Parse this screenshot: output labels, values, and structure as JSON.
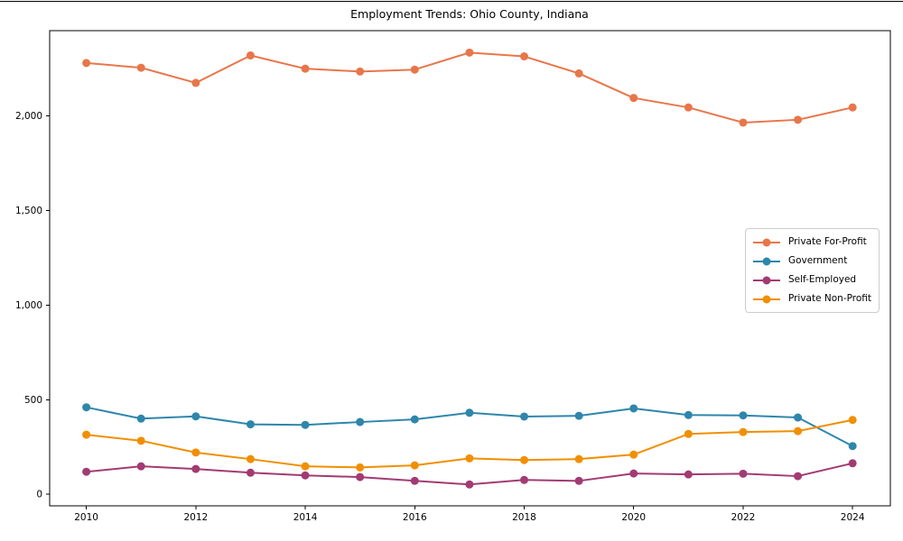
{
  "figure": {
    "background_color": "#ffffff",
    "frame_color": "#000000",
    "top_edge_line": true
  },
  "chart_data": {
    "type": "line",
    "title": "Employment Trends: Ohio County, Indiana",
    "xlabel": "",
    "ylabel": "",
    "grid": false,
    "legend_position": "center-right",
    "x": [
      2010,
      2011,
      2012,
      2013,
      2014,
      2015,
      2016,
      2017,
      2018,
      2019,
      2020,
      2021,
      2022,
      2023,
      2024
    ],
    "series": [
      {
        "name": "Private For-Profit",
        "color": "#E8764A",
        "values": [
          2280,
          2255,
          2175,
          2320,
          2250,
          2235,
          2245,
          2335,
          2315,
          2225,
          2095,
          2045,
          1965,
          1980,
          2045
        ]
      },
      {
        "name": "Government",
        "color": "#2E86AB",
        "values": [
          460,
          400,
          412,
          370,
          367,
          382,
          396,
          431,
          411,
          415,
          454,
          419,
          417,
          406,
          255
        ]
      },
      {
        "name": "Self-Employed",
        "color": "#A23B72",
        "values": [
          119,
          148,
          134,
          114,
          100,
          91,
          71,
          52,
          76,
          71,
          110,
          105,
          109,
          96,
          164
        ]
      },
      {
        "name": "Private Non-Profit",
        "color": "#F18F01",
        "values": [
          315,
          283,
          221,
          186,
          148,
          142,
          153,
          190,
          181,
          186,
          210,
          319,
          329,
          334,
          393
        ]
      }
    ],
    "xticks": [
      2010,
      2012,
      2014,
      2016,
      2018,
      2020,
      2022,
      2024
    ],
    "yticks": [
      0,
      500,
      1000,
      1500,
      2000
    ],
    "ytick_labels": [
      "0",
      "500",
      "1,000",
      "1,500",
      "2,000"
    ],
    "xlim": [
      2009.33,
      2024.69
    ],
    "ylim": [
      -61,
      2451
    ]
  }
}
